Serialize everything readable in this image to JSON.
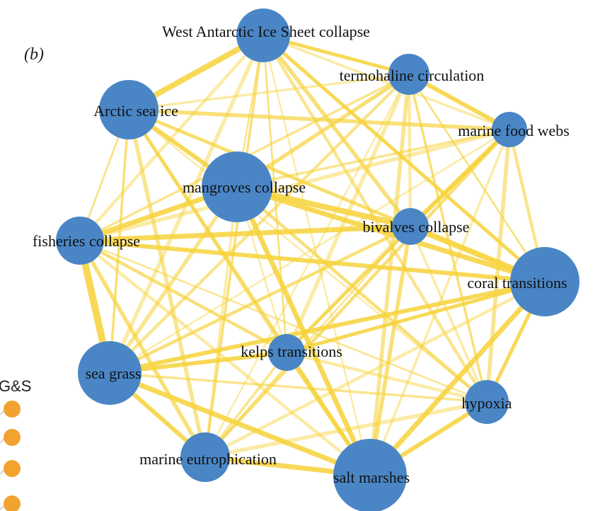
{
  "panel_label": "(b)",
  "side_fragment": {
    "text": "G&S",
    "dot_count": 4
  },
  "colors": {
    "node": "#4a86c6",
    "edge": "#f7d23a",
    "side_dot": "#f2a22e",
    "text": "#111111"
  },
  "nodes": [
    {
      "id": "west-antarctic-ice-sheet-collapse",
      "label": "West Antarctic Ice Sheet collapse"
    },
    {
      "id": "termohaline-circulation",
      "label": "termohaline circulation"
    },
    {
      "id": "arctic-sea-ice",
      "label": "Arctic sea ice"
    },
    {
      "id": "marine-food-webs",
      "label": "marine food webs"
    },
    {
      "id": "mangroves-collapse",
      "label": "mangroves collapse"
    },
    {
      "id": "bivalves-collapse",
      "label": "bivalves collapse"
    },
    {
      "id": "fisheries-collapse",
      "label": "fisheries collapse"
    },
    {
      "id": "coral-transitions",
      "label": "coral transitions"
    },
    {
      "id": "kelps-transitions",
      "label": "kelps transitions"
    },
    {
      "id": "sea-grass",
      "label": "sea grass"
    },
    {
      "id": "hypoxia",
      "label": "hypoxia"
    },
    {
      "id": "marine-eutrophication",
      "label": "marine eutrophication"
    },
    {
      "id": "salt-marshes",
      "label": "salt marshes"
    }
  ]
}
